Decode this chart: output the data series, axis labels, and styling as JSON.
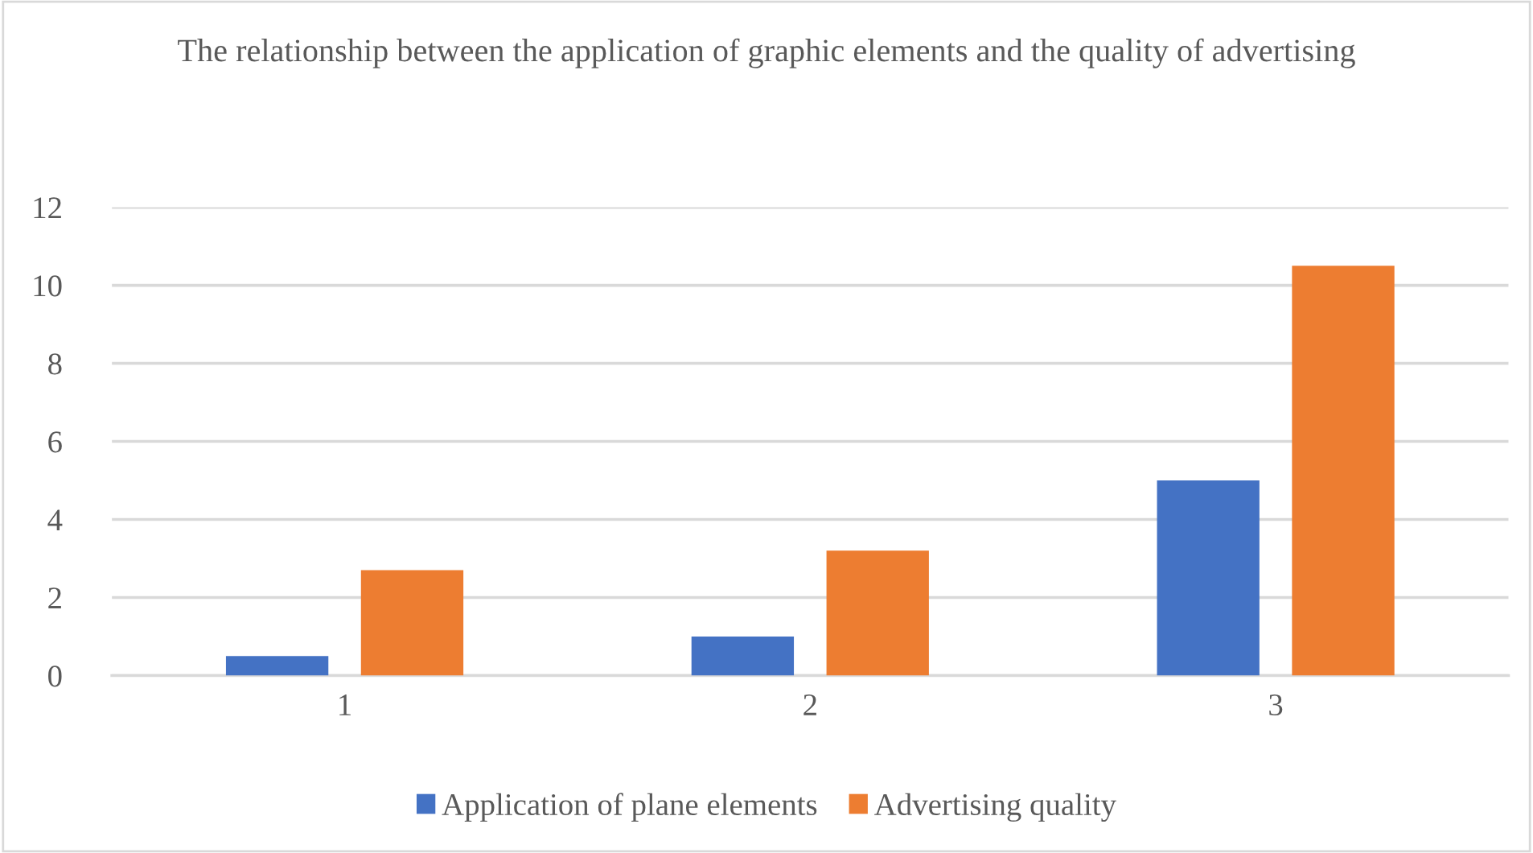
{
  "chart_data": {
    "type": "bar",
    "title": "The relationship between the application of graphic elements and the quality of advertising",
    "categories": [
      "1",
      "2",
      "3"
    ],
    "series": [
      {
        "name": "Application of plane elements",
        "color": "#4472c4",
        "values": [
          0.5,
          1.0,
          5.0
        ]
      },
      {
        "name": "Advertising quality",
        "color": "#ed7d31",
        "values": [
          2.7,
          3.2,
          10.5
        ]
      }
    ],
    "ylim": [
      0,
      12
    ],
    "yticks": [
      0,
      2,
      4,
      6,
      8,
      10,
      12
    ],
    "grid": "y",
    "legend": "bottom"
  }
}
